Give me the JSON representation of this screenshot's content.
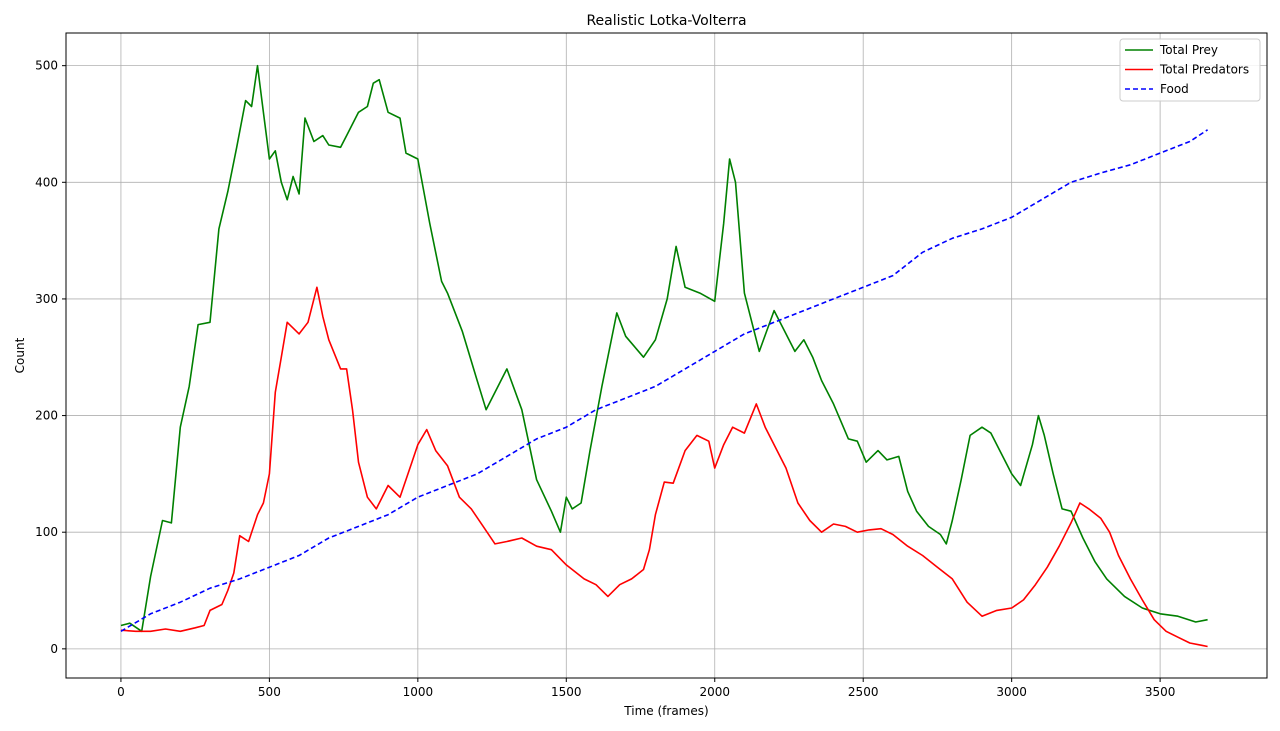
{
  "chart_data": {
    "type": "line",
    "title": "Realistic Lotka-Volterra",
    "xlabel": "Time (frames)",
    "ylabel": "Count",
    "xlim": [
      -185,
      3860
    ],
    "ylim": [
      -25,
      528
    ],
    "xticks": [
      0,
      500,
      1000,
      1500,
      2000,
      2500,
      3000,
      3500
    ],
    "yticks": [
      0,
      100,
      200,
      300,
      400,
      500
    ],
    "grid": true,
    "legend_position": "top-right",
    "series": [
      {
        "name": "Total Prey",
        "color": "#008000",
        "style": "solid",
        "x": [
          0,
          30,
          70,
          100,
          140,
          170,
          200,
          230,
          260,
          300,
          330,
          360,
          390,
          420,
          440,
          460,
          480,
          500,
          520,
          540,
          560,
          580,
          600,
          620,
          650,
          680,
          700,
          740,
          760,
          800,
          830,
          850,
          870,
          900,
          940,
          960,
          1000,
          1040,
          1080,
          1100,
          1150,
          1200,
          1230,
          1260,
          1300,
          1350,
          1400,
          1450,
          1480,
          1500,
          1520,
          1550,
          1580,
          1620,
          1670,
          1700,
          1760,
          1800,
          1840,
          1870,
          1900,
          1950,
          2000,
          2030,
          2050,
          2070,
          2100,
          2150,
          2200,
          2240,
          2270,
          2300,
          2330,
          2360,
          2400,
          2450,
          2480,
          2510,
          2550,
          2580,
          2620,
          2650,
          2680,
          2720,
          2760,
          2780,
          2800,
          2830,
          2860,
          2900,
          2930,
          2960,
          3000,
          3030,
          3070,
          3090,
          3110,
          3140,
          3170,
          3200,
          3240,
          3280,
          3320,
          3380,
          3440,
          3500,
          3560,
          3620,
          3660
        ],
        "y": [
          20,
          22,
          15,
          62,
          110,
          108,
          190,
          225,
          278,
          280,
          360,
          392,
          430,
          470,
          465,
          500,
          460,
          420,
          427,
          400,
          385,
          405,
          390,
          455,
          435,
          440,
          432,
          430,
          440,
          460,
          465,
          485,
          488,
          460,
          455,
          425,
          420,
          365,
          315,
          305,
          272,
          230,
          205,
          220,
          240,
          205,
          145,
          118,
          100,
          130,
          120,
          125,
          170,
          225,
          288,
          268,
          250,
          265,
          300,
          345,
          310,
          305,
          298,
          365,
          420,
          400,
          305,
          255,
          290,
          270,
          255,
          265,
          250,
          230,
          210,
          180,
          178,
          160,
          170,
          162,
          165,
          135,
          118,
          105,
          98,
          90,
          110,
          145,
          183,
          190,
          185,
          170,
          150,
          140,
          175,
          200,
          183,
          150,
          120,
          118,
          95,
          75,
          60,
          45,
          35,
          30,
          28,
          23,
          25
        ]
      },
      {
        "name": "Total Predators",
        "color": "#ff0000",
        "style": "solid",
        "x": [
          0,
          50,
          100,
          150,
          200,
          250,
          280,
          300,
          340,
          360,
          380,
          400,
          430,
          460,
          480,
          500,
          520,
          540,
          560,
          580,
          600,
          630,
          660,
          680,
          700,
          740,
          760,
          780,
          800,
          830,
          860,
          900,
          940,
          980,
          1000,
          1030,
          1060,
          1100,
          1140,
          1180,
          1220,
          1260,
          1300,
          1350,
          1400,
          1450,
          1500,
          1560,
          1600,
          1640,
          1680,
          1720,
          1760,
          1780,
          1800,
          1830,
          1860,
          1900,
          1940,
          1980,
          2000,
          2030,
          2060,
          2100,
          2140,
          2170,
          2200,
          2240,
          2280,
          2320,
          2360,
          2400,
          2440,
          2480,
          2520,
          2560,
          2600,
          2650,
          2700,
          2750,
          2800,
          2850,
          2900,
          2950,
          3000,
          3040,
          3080,
          3120,
          3160,
          3200,
          3230,
          3260,
          3300,
          3330,
          3360,
          3400,
          3440,
          3480,
          3520,
          3560,
          3600,
          3640,
          3660
        ],
        "y": [
          16,
          15,
          15,
          17,
          15,
          18,
          20,
          33,
          38,
          50,
          65,
          97,
          92,
          115,
          125,
          150,
          220,
          250,
          280,
          275,
          270,
          280,
          310,
          285,
          265,
          240,
          240,
          205,
          160,
          130,
          120,
          140,
          130,
          160,
          175,
          188,
          170,
          157,
          130,
          120,
          105,
          90,
          92,
          95,
          88,
          85,
          72,
          60,
          55,
          45,
          55,
          60,
          68,
          85,
          115,
          143,
          142,
          170,
          183,
          178,
          155,
          175,
          190,
          185,
          210,
          190,
          175,
          155,
          125,
          110,
          100,
          107,
          105,
          100,
          102,
          103,
          98,
          88,
          80,
          70,
          60,
          40,
          28,
          33,
          35,
          42,
          55,
          70,
          88,
          108,
          125,
          120,
          112,
          100,
          80,
          60,
          42,
          25,
          15,
          10,
          5,
          3,
          2
        ]
      },
      {
        "name": "Food",
        "color": "#0000ff",
        "style": "dashed",
        "x": [
          0,
          100,
          200,
          300,
          400,
          500,
          600,
          700,
          800,
          900,
          1000,
          1100,
          1200,
          1300,
          1400,
          1500,
          1600,
          1700,
          1800,
          1900,
          2000,
          2100,
          2200,
          2300,
          2400,
          2500,
          2600,
          2700,
          2800,
          2900,
          3000,
          3100,
          3200,
          3300,
          3400,
          3500,
          3600,
          3660
        ],
        "y": [
          15,
          30,
          40,
          52,
          60,
          70,
          80,
          95,
          105,
          115,
          130,
          140,
          150,
          165,
          180,
          190,
          205,
          215,
          225,
          240,
          255,
          270,
          280,
          290,
          300,
          310,
          320,
          340,
          352,
          360,
          370,
          385,
          400,
          408,
          415,
          425,
          435,
          445
        ]
      }
    ]
  }
}
